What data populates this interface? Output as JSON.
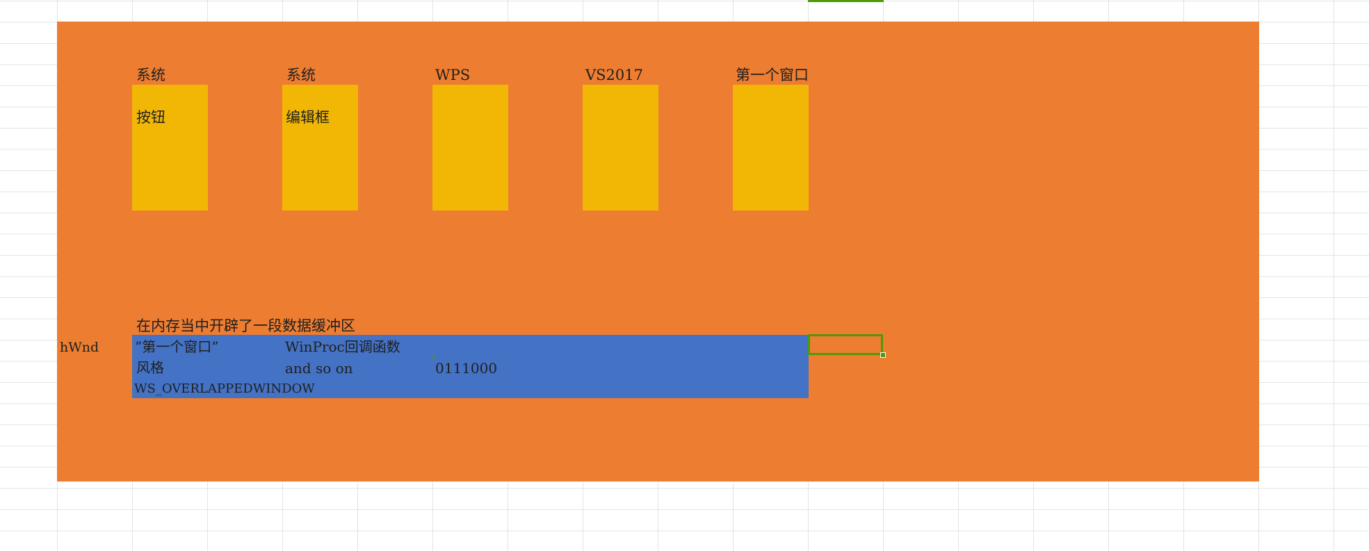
{
  "top_boxes": [
    {
      "label": "系统",
      "inner": "按钮"
    },
    {
      "label": "系统",
      "inner": "编辑框"
    },
    {
      "label": "WPS",
      "inner": ""
    },
    {
      "label": "VS2017",
      "inner": ""
    },
    {
      "label": "第一个窗口",
      "inner": ""
    }
  ],
  "buffer_label": "在内存当中开辟了一段数据缓冲区",
  "hwnd_label": "hWnd",
  "buffer_cells": {
    "title": "”第一个窗口”",
    "winproc": "WinProc回调函数",
    "style_label": "风格",
    "and_so_on": "and so on",
    "number": "0111000",
    "style_value": "WS_OVERLAPPEDWINDOW"
  },
  "colors": {
    "orange": "#ED7D31",
    "yellow": "#F2B705",
    "blue": "#4472C4",
    "selection_green": "#4E9A06"
  }
}
